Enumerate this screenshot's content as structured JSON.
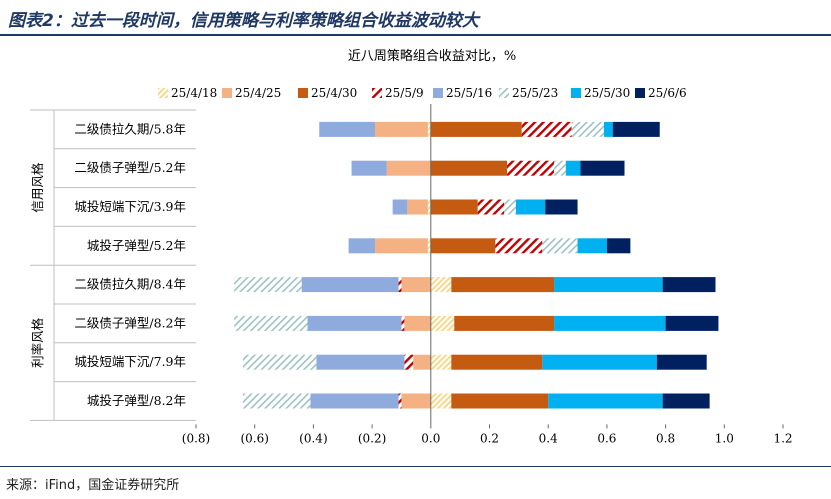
{
  "header": {
    "title": "图表2：过去一段时间，信用策略与利率策略组合收益波动较大"
  },
  "source": {
    "text": "来源：iFind，国金证券研究所"
  },
  "colors": {
    "accent": "#1f3864",
    "s0": "#fbe5a6",
    "s1": "#f4b183",
    "s2": "#c55a11",
    "s3": "#c00000",
    "s4": "#8faadc",
    "s5": "#9dc3c1",
    "s6": "#00b0f0",
    "s7": "#002060"
  },
  "chart_data": {
    "type": "bar",
    "orientation": "horizontal-stacked-diverging",
    "title": "近八周策略组合收益对比，%",
    "group_labels": [
      "信用风格",
      "利率风格"
    ],
    "groups": [
      0,
      0,
      0,
      0,
      1,
      1,
      1,
      1
    ],
    "categories": [
      "二级债拉久期/5.8年",
      "二级债子弹型/5.2年",
      "城投短端下沉/3.9年",
      "城投子弹型/5.2年",
      "二级债拉久期/8.4年",
      "二级债子弹型/8.2年",
      "城投短端下沉/7.9年",
      "城投子弹型/8.2年"
    ],
    "x_ticks": [
      "(0.8)",
      "(0.6)",
      "(0.4)",
      "(0.2)",
      "0.0",
      "0.2",
      "0.4",
      "0.6",
      "0.8",
      "1.0",
      "1.2"
    ],
    "xlim": [
      -0.8,
      1.2
    ],
    "series": [
      {
        "name": "25/4/18",
        "values": [
          -0.01,
          0.0,
          -0.01,
          -0.01,
          0.07,
          0.08,
          0.07,
          0.07
        ]
      },
      {
        "name": "25/4/25",
        "values": [
          -0.18,
          -0.15,
          -0.07,
          -0.18,
          -0.1,
          -0.09,
          -0.06,
          -0.1
        ]
      },
      {
        "name": "25/4/30",
        "values": [
          0.31,
          0.26,
          0.16,
          0.22,
          0.35,
          0.34,
          0.31,
          0.33
        ]
      },
      {
        "name": "25/5/9",
        "values": [
          0.17,
          0.16,
          0.09,
          0.16,
          -0.01,
          -0.01,
          -0.03,
          -0.01
        ]
      },
      {
        "name": "25/5/16",
        "values": [
          -0.19,
          -0.12,
          -0.05,
          -0.09,
          -0.33,
          -0.32,
          -0.3,
          -0.3
        ]
      },
      {
        "name": "25/5/23",
        "values": [
          0.11,
          0.04,
          0.04,
          0.12,
          -0.23,
          -0.25,
          -0.25,
          -0.23
        ]
      },
      {
        "name": "25/5/30",
        "values": [
          0.03,
          0.05,
          0.1,
          0.1,
          0.37,
          0.38,
          0.39,
          0.39
        ]
      },
      {
        "name": "25/6/6",
        "values": [
          0.16,
          0.15,
          0.11,
          0.08,
          0.18,
          0.18,
          0.17,
          0.16
        ]
      }
    ]
  }
}
